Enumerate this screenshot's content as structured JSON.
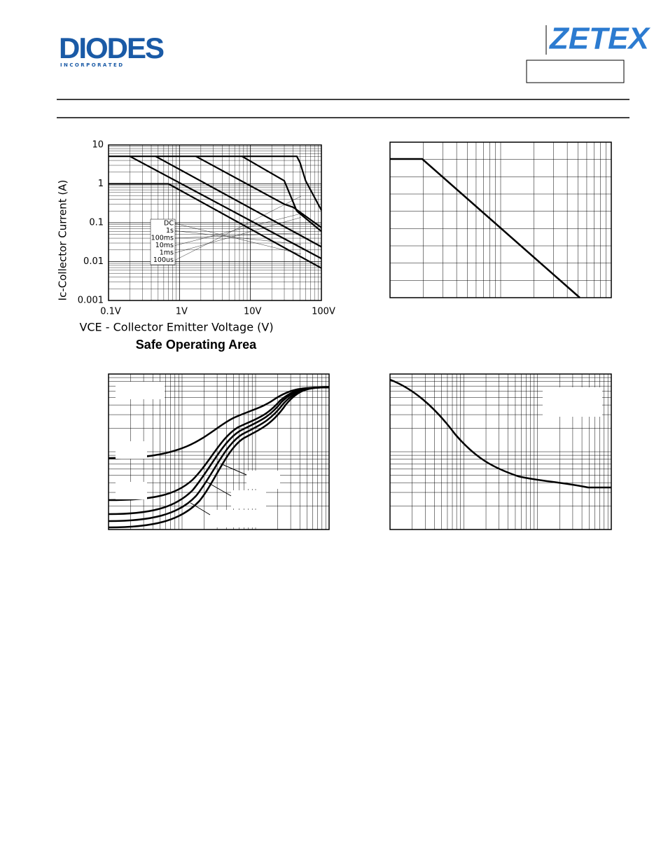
{
  "header": {
    "company": "DIODES",
    "company_sub": "I N C O R P O R A T E D",
    "brand": "ZETEX"
  },
  "chart_data": {
    "type": "line",
    "title": "Safe Operating Area",
    "x_label": "VCE - Collector Emitter Voltage (V)",
    "y_label": "Ic-Collector Current (A)",
    "log_x": true,
    "log_y": true,
    "grid": true,
    "xlim": [
      0.1,
      100
    ],
    "ylim": [
      0.001,
      10
    ],
    "xticks": [
      {
        "value": 0.1,
        "label": "0.1V"
      },
      {
        "value": 1,
        "label": "1V"
      },
      {
        "value": 10,
        "label": "10V"
      },
      {
        "value": 100,
        "label": "100V"
      }
    ],
    "yticks": [
      0.001,
      0.01,
      0.1,
      1,
      10
    ],
    "series": [
      {
        "name": "DC",
        "color": "#000000",
        "x": [
          0.1,
          0.7,
          100
        ],
        "values": [
          1,
          1,
          0.0068
        ]
      },
      {
        "name": "1s",
        "color": "#000000",
        "x": [
          0.2,
          100
        ],
        "values": [
          5.1,
          0.012
        ]
      },
      {
        "name": "100ms",
        "color": "#000000",
        "x": [
          0.46,
          100
        ],
        "values": [
          5.1,
          0.024
        ]
      },
      {
        "name": "10ms",
        "color": "#000000",
        "x": [
          1.7,
          30,
          40,
          100
        ],
        "values": [
          5.1,
          0.3,
          0.25,
          0.075
        ]
      },
      {
        "name": "1ms",
        "color": "#000000",
        "x": [
          7.6,
          30,
          45,
          100
        ],
        "values": [
          5.1,
          1.2,
          0.2,
          0.06
        ]
      },
      {
        "name": "100us",
        "color": "#000000",
        "x": [
          0.1,
          45,
          50,
          60,
          100
        ],
        "values": [
          5.1,
          5.1,
          3.5,
          1.2,
          0.21
        ]
      }
    ]
  }
}
